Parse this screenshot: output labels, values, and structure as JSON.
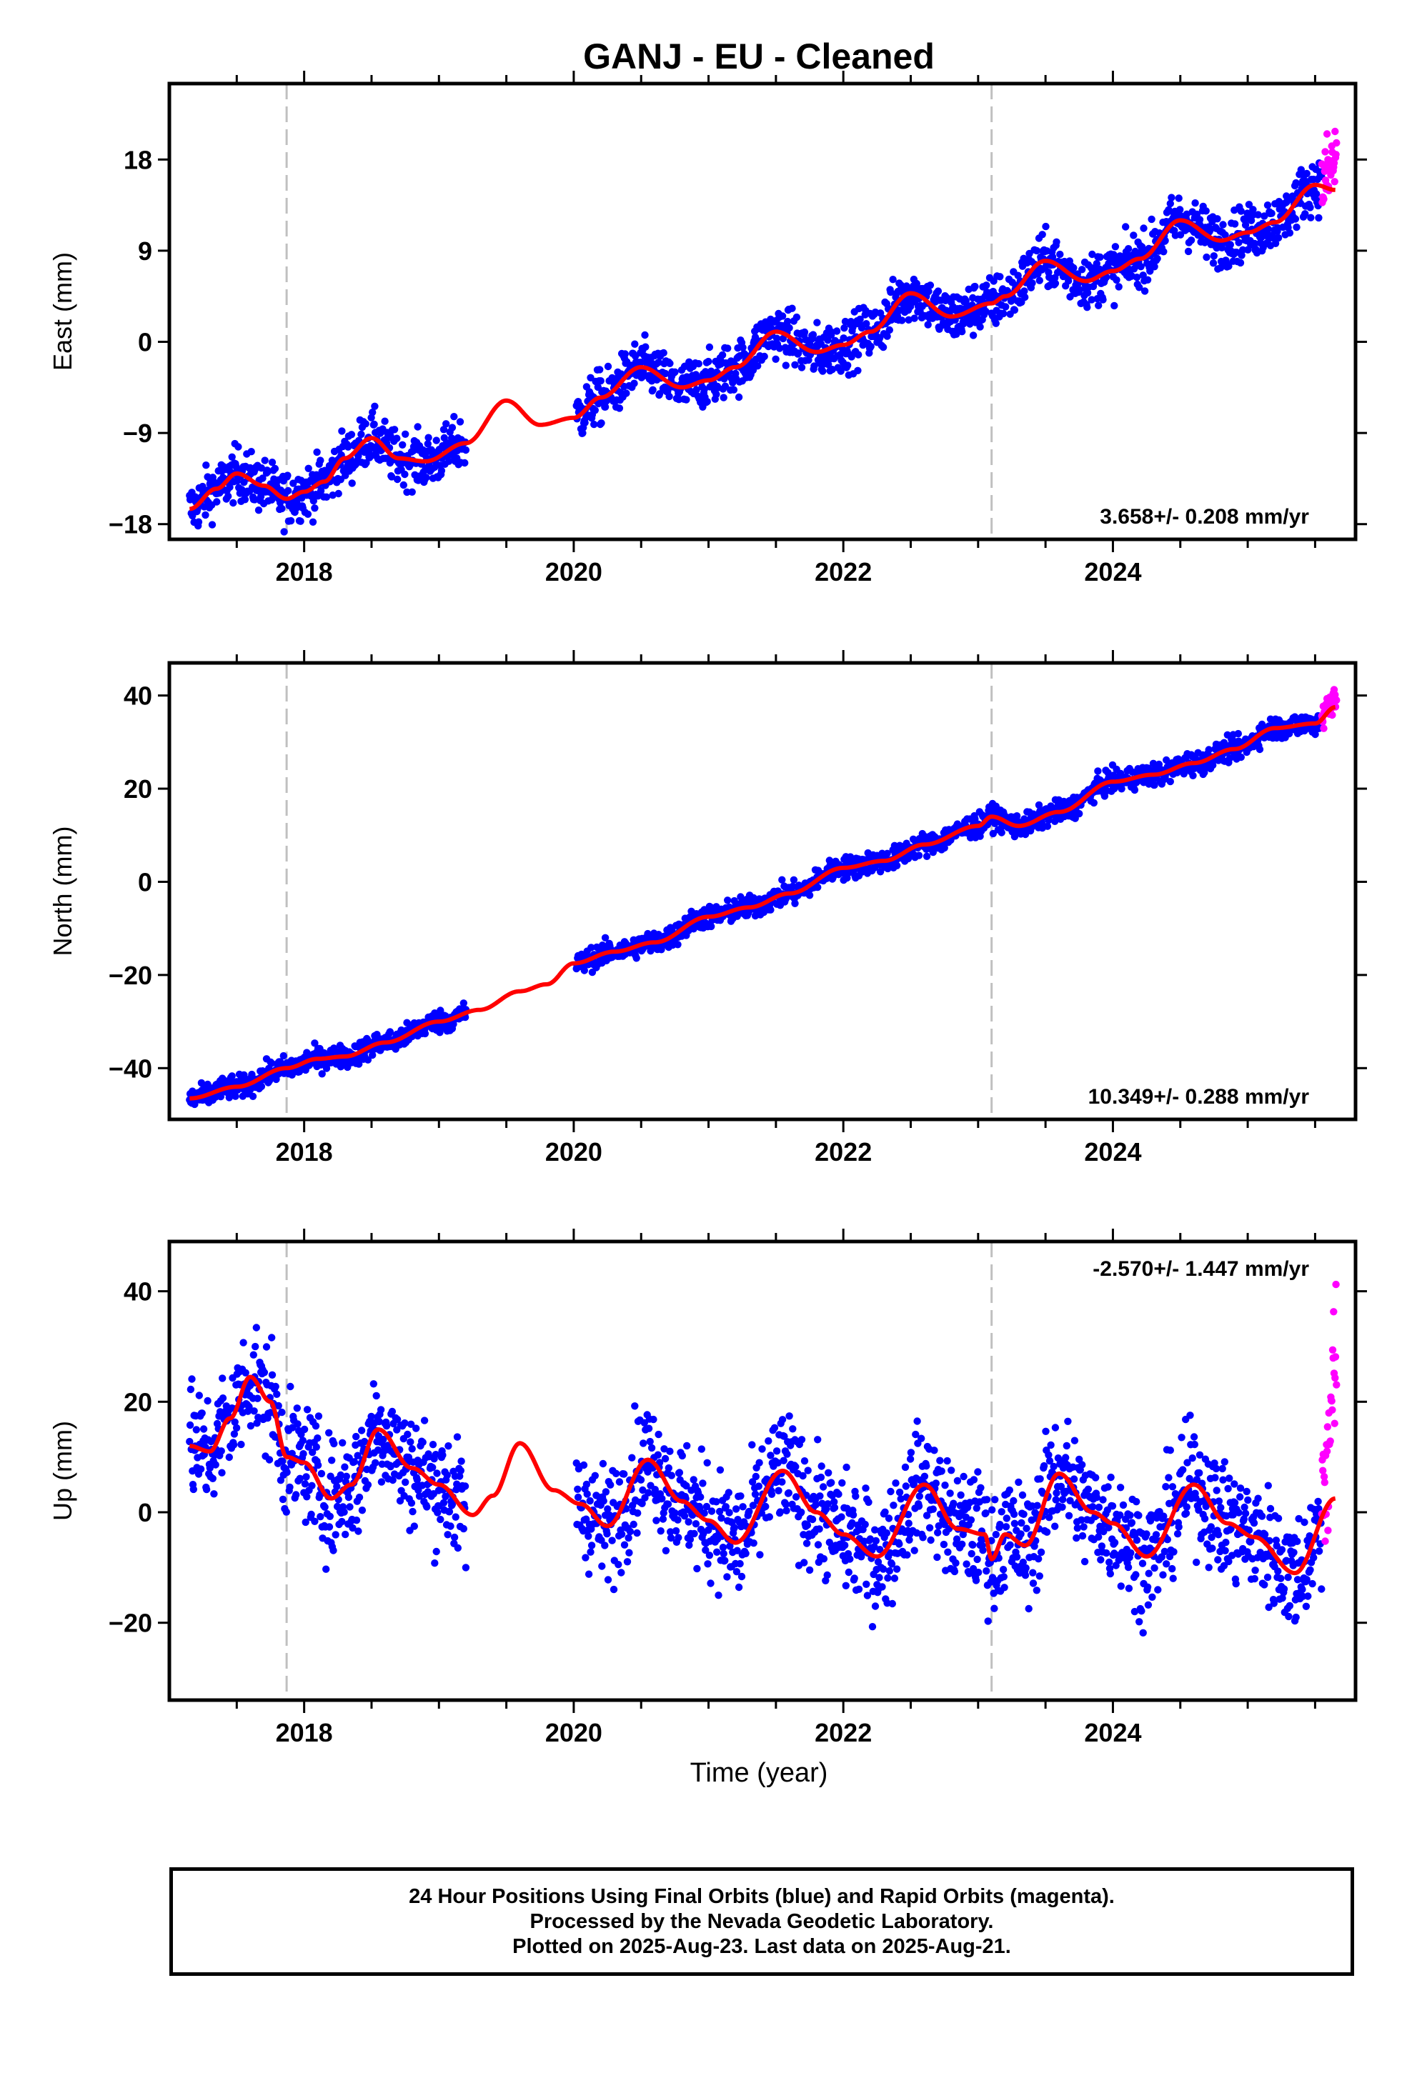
{
  "chart_data": {
    "type": "scatter",
    "title": "GANJ  - EU - Cleaned",
    "xlabel": "Time (year)",
    "xlim": [
      2017.0,
      2025.8
    ],
    "xticks": [
      "2018",
      "2020",
      "2022",
      "2024"
    ],
    "vertical_dashed_lines": [
      2017.87,
      2023.1
    ],
    "series_colors": {
      "final_orbits": "#0000ff",
      "rapid_orbits": "#ff00ff",
      "model": "#ff0000",
      "reference_lines": "#c0c0c0"
    },
    "panels": [
      {
        "name": "east",
        "ylabel": "East (mm)",
        "ylim": [
          -19.5,
          25.5
        ],
        "yticks": [
          -18,
          -9,
          0,
          9,
          18
        ],
        "ytick_labels": [
          "−18",
          "−9",
          "0",
          "9",
          "18"
        ],
        "rate": "3.658+/- 0.208 mm/yr",
        "rate_pos": "bottom-right",
        "model_curve": {
          "x": [
            2017.15,
            2017.35,
            2017.5,
            2017.7,
            2017.87,
            2018.0,
            2018.15,
            2018.3,
            2018.5,
            2018.7,
            2018.9,
            2019.2,
            2019.5,
            2019.75,
            2020.0,
            2020.2,
            2020.5,
            2020.8,
            2021.0,
            2021.2,
            2021.5,
            2021.8,
            2022.0,
            2022.2,
            2022.5,
            2022.8,
            2023.1,
            2023.2,
            2023.5,
            2023.8,
            2024.0,
            2024.2,
            2024.5,
            2024.8,
            2025.0,
            2025.2,
            2025.5,
            2025.65
          ],
          "y": [
            -16.5,
            -14.5,
            -13.0,
            -14.2,
            -15.5,
            -14.8,
            -13.8,
            -11.5,
            -9.5,
            -11.5,
            -11.8,
            -10.0,
            -5.8,
            -8.2,
            -7.5,
            -5.5,
            -2.5,
            -4.5,
            -3.8,
            -2.5,
            1.0,
            -1.0,
            -0.3,
            1.0,
            4.8,
            2.5,
            3.8,
            4.5,
            8.0,
            6.0,
            7.0,
            8.2,
            12.0,
            10.0,
            10.8,
            11.8,
            15.5,
            15.0
          ]
        }
      },
      {
        "name": "north",
        "ylabel": "North (mm)",
        "ylim": [
          -51,
          47
        ],
        "yticks": [
          -40,
          -20,
          0,
          20,
          40
        ],
        "ytick_labels": [
          "−40",
          "−20",
          "0",
          "20",
          "40"
        ],
        "rate": "10.349+/- 0.288 mm/yr",
        "rate_pos": "bottom-right",
        "model_curve": {
          "x": [
            2017.15,
            2017.5,
            2017.87,
            2018.1,
            2018.3,
            2018.6,
            2019.0,
            2019.3,
            2019.6,
            2019.8,
            2020.0,
            2020.3,
            2020.6,
            2021.0,
            2021.3,
            2021.6,
            2022.0,
            2022.3,
            2022.6,
            2023.0,
            2023.1,
            2023.3,
            2023.6,
            2024.0,
            2024.3,
            2024.6,
            2024.9,
            2025.2,
            2025.5,
            2025.65
          ],
          "y": [
            -46.5,
            -44.0,
            -40.0,
            -38.0,
            -37.5,
            -34.5,
            -30.0,
            -27.5,
            -23.5,
            -22.0,
            -17.5,
            -15.0,
            -13.0,
            -7.5,
            -5.5,
            -2.5,
            3.0,
            4.5,
            8.0,
            12.0,
            14.0,
            12.0,
            15.0,
            21.5,
            23.0,
            25.5,
            28.5,
            33.0,
            34.0,
            37.5
          ]
        }
      },
      {
        "name": "up",
        "ylabel": "Up (mm)",
        "ylim": [
          -34,
          49
        ],
        "yticks": [
          -20,
          0,
          20,
          40
        ],
        "ytick_labels": [
          "−20",
          "0",
          "20",
          "40"
        ],
        "rate": "-2.570+/- 1.447 mm/yr",
        "rate_pos": "top-right",
        "model_curve": {
          "x": [
            2017.15,
            2017.3,
            2017.45,
            2017.6,
            2017.75,
            2017.87,
            2018.0,
            2018.2,
            2018.35,
            2018.55,
            2018.8,
            2019.0,
            2019.25,
            2019.4,
            2019.6,
            2019.85,
            2020.05,
            2020.25,
            2020.55,
            2020.8,
            2021.0,
            2021.2,
            2021.55,
            2021.8,
            2022.0,
            2022.25,
            2022.6,
            2022.85,
            2023.05,
            2023.1,
            2023.2,
            2023.35,
            2023.6,
            2023.85,
            2024.0,
            2024.25,
            2024.6,
            2024.85,
            2025.05,
            2025.35,
            2025.65
          ],
          "y": [
            12.0,
            11.0,
            17.0,
            24.5,
            20.0,
            10.0,
            9.0,
            2.5,
            5.0,
            15.0,
            8.0,
            5.0,
            -0.5,
            3.0,
            12.5,
            4.0,
            1.5,
            -2.5,
            9.5,
            2.0,
            -1.5,
            -5.5,
            7.5,
            0.0,
            -4.0,
            -8.0,
            5.0,
            -3.0,
            -4.0,
            -8.5,
            -4.0,
            -6.0,
            7.0,
            0.0,
            -2.0,
            -8.0,
            5.0,
            -2.0,
            -4.5,
            -11.0,
            2.5
          ]
        }
      }
    ],
    "legend_text": [
      "24 Hour Positions Using Final Orbits (blue) and Rapid Orbits (magenta).",
      "Processed by the Nevada Geodetic Laboratory.",
      "Plotted on 2025-Aug-23. Last data on 2025-Aug-21."
    ]
  }
}
